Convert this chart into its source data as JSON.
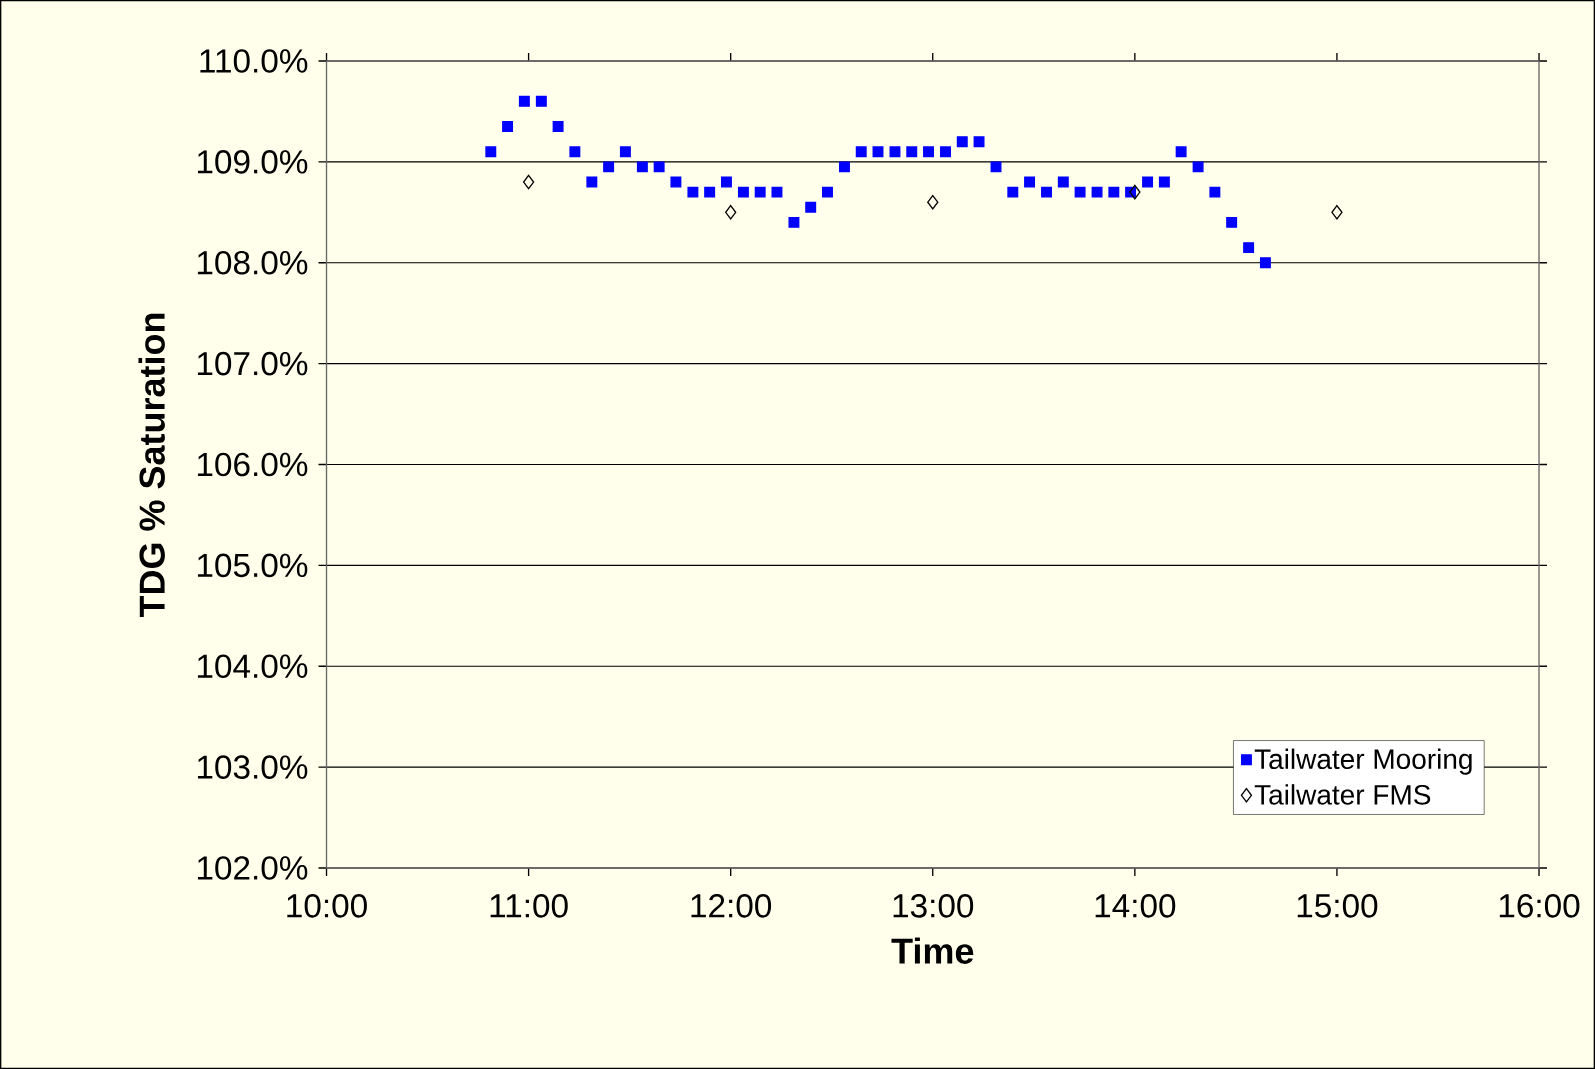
{
  "chart_data": {
    "type": "scatter",
    "xlabel": "Time",
    "ylabel": "TDG % Saturation",
    "xlim": [
      10,
      16
    ],
    "ylim": [
      102,
      110
    ],
    "xticks": [
      {
        "value": 10,
        "label": "10:00"
      },
      {
        "value": 11,
        "label": "11:00"
      },
      {
        "value": 12,
        "label": "12:00"
      },
      {
        "value": 13,
        "label": "13:00"
      },
      {
        "value": 14,
        "label": "14:00"
      },
      {
        "value": 15,
        "label": "15:00"
      },
      {
        "value": 16,
        "label": "16:00"
      }
    ],
    "yticks": [
      {
        "value": 102,
        "label": "102.0%"
      },
      {
        "value": 103,
        "label": "103.0%"
      },
      {
        "value": 104,
        "label": "104.0%"
      },
      {
        "value": 105,
        "label": "105.0%"
      },
      {
        "value": 106,
        "label": "106.0%"
      },
      {
        "value": 107,
        "label": "107.0%"
      },
      {
        "value": 108,
        "label": "108.0%"
      },
      {
        "value": 109,
        "label": "109.0%"
      },
      {
        "value": 110,
        "label": "110.0%"
      }
    ],
    "grid": "y",
    "legend": "bottom right",
    "series": [
      {
        "name": "Tailwater Mooring",
        "color": "#0000ff",
        "marker": "square",
        "x": [
          10.813,
          10.896,
          10.979,
          11.063,
          11.146,
          11.229,
          11.313,
          11.396,
          11.479,
          11.563,
          11.646,
          11.729,
          11.813,
          11.896,
          11.979,
          12.063,
          12.146,
          12.229,
          12.313,
          12.396,
          12.479,
          12.563,
          12.646,
          12.729,
          12.813,
          12.896,
          12.979,
          13.063,
          13.146,
          13.229,
          13.313,
          13.396,
          13.479,
          13.563,
          13.646,
          13.729,
          13.813,
          13.896,
          13.979,
          14.063,
          14.146,
          14.229,
          14.313,
          14.396,
          14.479,
          14.563,
          14.646
        ],
        "values": [
          109.1,
          109.35,
          109.6,
          109.6,
          109.35,
          109.1,
          108.8,
          108.95,
          109.1,
          108.95,
          108.95,
          108.8,
          108.7,
          108.7,
          108.8,
          108.7,
          108.7,
          108.7,
          108.4,
          108.55,
          108.7,
          108.95,
          109.1,
          109.1,
          109.1,
          109.1,
          109.1,
          109.1,
          109.2,
          109.2,
          108.95,
          108.7,
          108.8,
          108.7,
          108.8,
          108.7,
          108.7,
          108.7,
          108.7,
          108.8,
          108.8,
          109.1,
          108.95,
          108.7,
          108.4,
          108.15,
          108.0
        ]
      },
      {
        "name": "Tailwater FMS",
        "color": "#000000",
        "marker": "diamond",
        "x": [
          11,
          12,
          13,
          14,
          15
        ],
        "values": [
          108.8,
          108.5,
          108.6,
          108.7,
          108.5
        ]
      }
    ]
  }
}
